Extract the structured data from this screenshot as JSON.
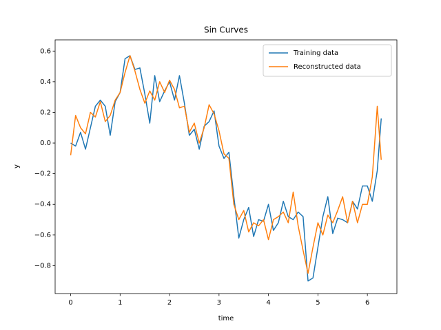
{
  "chart_data": {
    "type": "line",
    "title": "Sin Curves",
    "xlabel": "time",
    "ylabel": "y",
    "x": [
      0,
      0.1,
      0.2,
      0.3,
      0.4,
      0.5,
      0.6,
      0.7,
      0.8,
      0.9,
      1.0,
      1.1,
      1.2,
      1.3,
      1.4,
      1.5,
      1.6,
      1.7,
      1.8,
      1.9,
      2.0,
      2.1,
      2.2,
      2.3,
      2.4,
      2.5,
      2.6,
      2.7,
      2.8,
      2.9,
      3.0,
      3.1,
      3.2,
      3.3,
      3.4,
      3.5,
      3.6,
      3.7,
      3.8,
      3.9,
      4.0,
      4.1,
      4.2,
      4.3,
      4.4,
      4.5,
      4.6,
      4.7,
      4.8,
      4.9,
      5.0,
      5.1,
      5.2,
      5.3,
      5.4,
      5.5,
      5.6,
      5.7,
      5.8,
      5.9,
      6.0,
      6.1,
      6.2,
      6.28
    ],
    "series": [
      {
        "name": "Training data",
        "color": "#1f77b4",
        "values": [
          0.0,
          -0.02,
          0.07,
          -0.04,
          0.1,
          0.24,
          0.28,
          0.24,
          0.05,
          0.27,
          0.33,
          0.55,
          0.57,
          0.48,
          0.49,
          0.32,
          0.13,
          0.44,
          0.27,
          0.34,
          0.4,
          0.28,
          0.44,
          0.26,
          0.05,
          0.09,
          -0.04,
          0.11,
          0.14,
          0.21,
          -0.02,
          -0.1,
          -0.06,
          -0.35,
          -0.62,
          -0.5,
          -0.42,
          -0.61,
          -0.5,
          -0.51,
          -0.4,
          -0.57,
          -0.52,
          -0.38,
          -0.48,
          -0.5,
          -0.45,
          -0.48,
          -0.9,
          -0.88,
          -0.68,
          -0.48,
          -0.35,
          -0.59,
          -0.49,
          -0.5,
          -0.52,
          -0.38,
          -0.43,
          -0.28,
          -0.28,
          -0.38,
          -0.18,
          0.16
        ]
      },
      {
        "name": "Reconstructed data",
        "color": "#ff7f0e",
        "values": [
          -0.08,
          0.18,
          0.1,
          0.06,
          0.2,
          0.17,
          0.27,
          0.14,
          0.18,
          0.28,
          0.33,
          0.46,
          0.57,
          0.47,
          0.35,
          0.26,
          0.34,
          0.28,
          0.4,
          0.33,
          0.41,
          0.35,
          0.23,
          0.24,
          0.07,
          0.13,
          0.0,
          0.1,
          0.25,
          0.19,
          0.08,
          -0.07,
          -0.1,
          -0.4,
          -0.5,
          -0.44,
          -0.58,
          -0.52,
          -0.54,
          -0.5,
          -0.63,
          -0.5,
          -0.48,
          -0.45,
          -0.52,
          -0.32,
          -0.54,
          -0.7,
          -0.85,
          -0.68,
          -0.52,
          -0.6,
          -0.47,
          -0.52,
          -0.44,
          -0.35,
          -0.52,
          -0.38,
          -0.52,
          -0.4,
          -0.4,
          -0.22,
          0.24,
          -0.11
        ]
      }
    ],
    "xlim": [
      -0.314,
      6.597
    ],
    "ylim": [
      -0.982,
      0.673
    ],
    "xticks": [
      0,
      1,
      2,
      3,
      4,
      5,
      6
    ],
    "yticks": [
      {
        "value": -0.8,
        "label": "−0.8"
      },
      {
        "value": -0.6,
        "label": "−0.6"
      },
      {
        "value": -0.4,
        "label": "−0.4"
      },
      {
        "value": -0.2,
        "label": "−0.2"
      },
      {
        "value": 0,
        "label": "0.0"
      },
      0.2,
      0.4,
      0.6
    ],
    "legend": "upper right",
    "grid": false
  }
}
